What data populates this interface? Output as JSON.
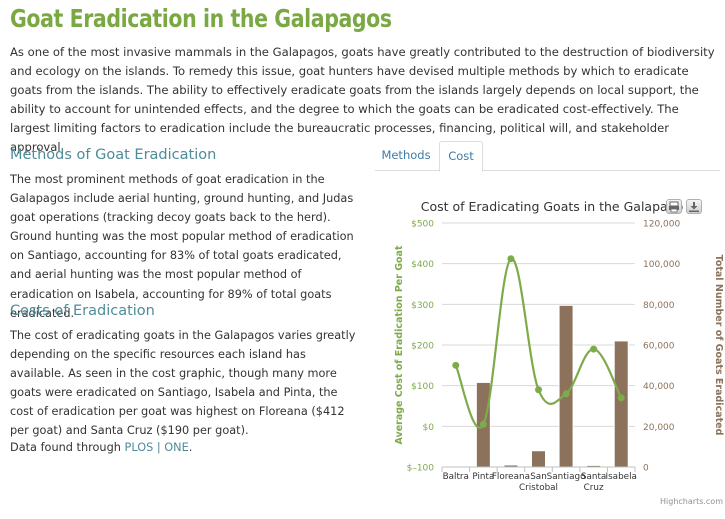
{
  "page": {
    "title": "Goat Eradication in the Galapagos",
    "intro": "As one of the most invasive mammals in the Galapagos, goats have greatly contributed to the destruction of biodiversity and ecology on the islands. To remedy this issue, goat hunters have devised multiple methods by which to eradicate goats from the islands. The ability to effectively eradicate goats from the islands largely depends on local support, the ability to account for unintended effects, and the degree to which the goats can be eradicated cost-effectively. The largest limiting factors to eradication include the bureaucratic processes, financing, political will, and stakeholder approval."
  },
  "methods": {
    "heading": "Methods of Goat Eradication",
    "text": "The most prominent methods of goat eradication in the Galapagos include aerial hunting, ground hunting, and Judas goat operations (tracking decoy goats back to the herd). Ground hunting was the most popular method of eradication on Santiago, accounting for 83% of total goats eradicated, and aerial hunting was the most popular method of eradication on Isabela, accounting for 89% of total goats eradicated."
  },
  "costs": {
    "heading": "Costs of Eradication",
    "text": "The cost of eradicating goats in the Galapagos varies greatly depending on the specific resources each island has available. As seen in the cost graphic, though many more goats were eradicated on Santiago, Isabela and Pinta, the cost of eradication per goat was highest on Floreana ($412 per goat) and Santa Cruz ($190 per goat)."
  },
  "source": {
    "prefix": "Data found through ",
    "link": "PLOS | ONE",
    "suffix": "."
  },
  "tabs": [
    {
      "label": "Methods",
      "active": false
    },
    {
      "label": "Cost",
      "active": true
    }
  ],
  "chart_buttons": {
    "print_icon": "printer-icon",
    "export_icon": "download-icon"
  },
  "chart_data": {
    "type": "bar",
    "title": "Cost of Eradicating Goats in the Galapago",
    "categories": [
      "Baltra",
      "Pinta",
      "Floreana",
      "San Cristobal",
      "Santiago",
      "Santa Cruz",
      "Isabela"
    ],
    "category_lines": [
      [
        "Baltra"
      ],
      [
        "Pinta"
      ],
      [
        "Floreana"
      ],
      [
        "San",
        "Cristobal"
      ],
      [
        "Santiago"
      ],
      [
        "Santa",
        "Cruz"
      ],
      [
        "Isabela"
      ]
    ],
    "series": [
      {
        "name": "Total Number of Goats Eradicated",
        "type": "bar",
        "axis": "right",
        "color": "#8c725a",
        "values": [
          0,
          41600,
          1000,
          8000,
          79500,
          800,
          62000
        ]
      },
      {
        "name": "Average Cost of Eradication Per Goat",
        "type": "line",
        "axis": "left",
        "color": "#7dab4a",
        "values": [
          150,
          5,
          412,
          90,
          80,
          190,
          70
        ]
      }
    ],
    "yaxis_left": {
      "label": "Average Cost of Eradication Per Goat",
      "min": -100,
      "max": 500,
      "step": 100,
      "ticks": [
        "$–100",
        "$0",
        "$100",
        "$200",
        "$300",
        "$400",
        "$500"
      ],
      "color": "#7dab4a"
    },
    "yaxis_right": {
      "label": "Total Number of Goats Eradicated",
      "min": 0,
      "max": 120000,
      "step": 20000,
      "ticks": [
        "0",
        "20,000",
        "40,000",
        "60,000",
        "80,000",
        "100,000",
        "120,000"
      ],
      "color": "#8c725a"
    },
    "credits": "Highcharts.com",
    "grid": true,
    "legend": "none"
  }
}
